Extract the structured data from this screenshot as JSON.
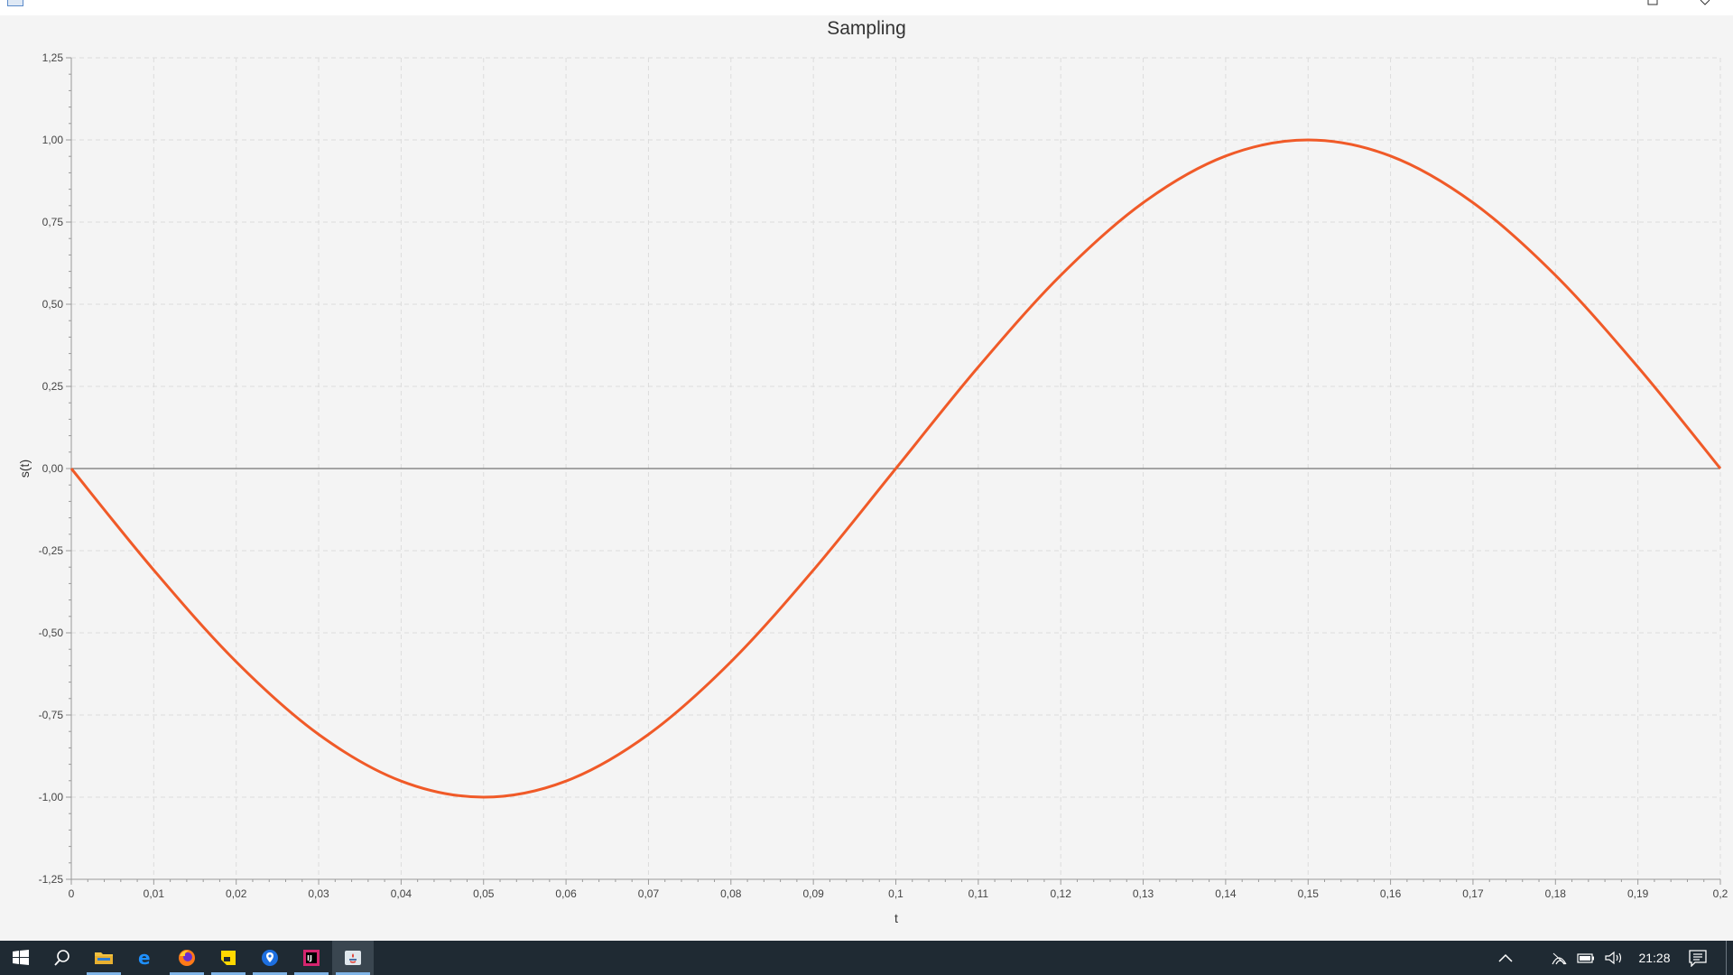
{
  "window": {
    "icons": {
      "app": "java-window-icon",
      "maximize": "maximize-icon",
      "close": "close-icon"
    }
  },
  "chart_data": {
    "type": "line",
    "title": "Sampling",
    "xlabel": "t",
    "ylabel": "s(t)",
    "xlim": [
      0,
      0.2
    ],
    "ylim": [
      -1.25,
      1.25
    ],
    "grid": true,
    "x_ticks": [
      "0",
      "0,01",
      "0,02",
      "0,03",
      "0,04",
      "0,05",
      "0,06",
      "0,07",
      "0,08",
      "0,09",
      "0,1",
      "0,11",
      "0,12",
      "0,13",
      "0,14",
      "0,15",
      "0,16",
      "0,17",
      "0,18",
      "0,19",
      "0,2"
    ],
    "y_ticks": [
      "1,25",
      "1,00",
      "0,75",
      "0,50",
      "0,25",
      "0,00",
      "-0,25",
      "-0,50",
      "-0,75",
      "-1,00",
      "-1,25"
    ],
    "x_tick_values": [
      0,
      0.01,
      0.02,
      0.03,
      0.04,
      0.05,
      0.06,
      0.07,
      0.08,
      0.09,
      0.1,
      0.11,
      0.12,
      0.13,
      0.14,
      0.15,
      0.16,
      0.17,
      0.18,
      0.19,
      0.2
    ],
    "y_tick_values": [
      1.25,
      1.0,
      0.75,
      0.5,
      0.25,
      0,
      -0.25,
      -0.5,
      -0.75,
      -1.0,
      -1.25
    ],
    "series": [
      {
        "color": "#f05a28",
        "x": [
          0,
          0.01,
          0.02,
          0.03,
          0.04,
          0.05,
          0.06,
          0.07,
          0.08,
          0.09,
          0.1,
          0.11,
          0.12,
          0.13,
          0.14,
          0.15,
          0.16,
          0.17,
          0.18,
          0.19,
          0.2
        ],
        "y": [
          0,
          -0.309,
          -0.588,
          -0.809,
          -0.951,
          -1.0,
          -0.951,
          -0.809,
          -0.588,
          -0.309,
          0,
          0.309,
          0.588,
          0.809,
          0.951,
          1.0,
          0.951,
          0.809,
          0.588,
          0.309,
          0
        ]
      }
    ],
    "zero_line": true
  },
  "taskbar": {
    "items": [
      {
        "name": "start-button",
        "icon": "windows-logo-icon"
      },
      {
        "name": "search-button",
        "icon": "search-icon"
      },
      {
        "name": "file-explorer",
        "icon": "folder-icon"
      },
      {
        "name": "edge",
        "icon": "edge-browser-icon"
      },
      {
        "name": "firefox",
        "icon": "firefox-icon"
      },
      {
        "name": "sticky-notes",
        "icon": "sticky-notes-icon"
      },
      {
        "name": "maps",
        "icon": "maps-pin-icon"
      },
      {
        "name": "intellij",
        "icon": "intellij-icon"
      },
      {
        "name": "java-app",
        "icon": "java-app-icon"
      }
    ],
    "tray": {
      "clock": "21:28",
      "icons": [
        "chevron-up-icon",
        "wifi-icon",
        "battery-icon",
        "volume-icon",
        "notification-icon"
      ]
    },
    "accent": "#7fb3e6"
  }
}
